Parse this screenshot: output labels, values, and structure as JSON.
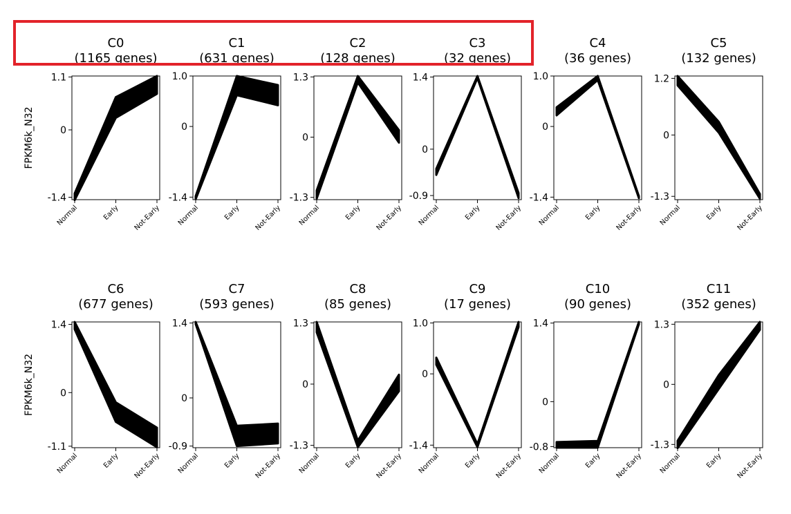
{
  "highlight_color": "#e2232a",
  "line_color": "#000000",
  "ylabel": "FPKM6k_N32",
  "chart_data": [
    {
      "type": "line",
      "title": "C0",
      "subtitle": "(1165 genes)",
      "categories": [
        "Normal",
        "Early",
        "Not-Early"
      ],
      "ylim": [
        -1.45,
        1.12
      ],
      "yticks": [
        1.1,
        0,
        -1.4
      ],
      "ytick_labels": [
        "1.1",
        "0",
        "-1.4"
      ],
      "band": {
        "upper": [
          -1.32,
          0.68,
          1.12
        ],
        "lower": [
          -1.46,
          0.25,
          0.75
        ]
      }
    },
    {
      "type": "line",
      "title": "C1",
      "subtitle": "(631 genes)",
      "categories": [
        "Normal",
        "Early",
        "Not-Early"
      ],
      "ylim": [
        -1.45,
        1.0
      ],
      "yticks": [
        1.0,
        0,
        -1.4
      ],
      "ytick_labels": [
        "1.0",
        "0",
        "-1.4"
      ],
      "band": {
        "upper": [
          -1.38,
          1.0,
          0.82
        ],
        "lower": [
          -1.44,
          0.62,
          0.42
        ]
      }
    },
    {
      "type": "line",
      "title": "C2",
      "subtitle": "(128 genes)",
      "categories": [
        "Normal",
        "Early",
        "Not-Early"
      ],
      "ylim": [
        -1.35,
        1.32
      ],
      "yticks": [
        1.3,
        0,
        -1.3
      ],
      "ytick_labels": [
        "1.3",
        "0",
        "-1.3"
      ],
      "band": {
        "upper": [
          -1.15,
          1.32,
          0.15
        ],
        "lower": [
          -1.33,
          1.18,
          -0.12
        ]
      }
    },
    {
      "type": "line",
      "title": "C3",
      "subtitle": "(32 genes)",
      "categories": [
        "Normal",
        "Early",
        "Not-Early"
      ],
      "ylim": [
        -0.98,
        1.42
      ],
      "yticks": [
        1.4,
        0,
        -0.9
      ],
      "ytick_labels": [
        "1.4",
        "0",
        "-0.9"
      ],
      "band": {
        "upper": [
          -0.38,
          1.42,
          -0.85
        ],
        "lower": [
          -0.5,
          1.38,
          -0.95
        ]
      }
    },
    {
      "type": "line",
      "title": "C4",
      "subtitle": "(36 genes)",
      "categories": [
        "Normal",
        "Early",
        "Not-Early"
      ],
      "ylim": [
        -1.45,
        1.0
      ],
      "yticks": [
        1.0,
        0,
        -1.4
      ],
      "ytick_labels": [
        "1.0",
        "0",
        "-1.4"
      ],
      "band": {
        "upper": [
          0.38,
          1.0,
          -1.38
        ],
        "lower": [
          0.22,
          0.92,
          -1.42
        ]
      }
    },
    {
      "type": "line",
      "title": "C5",
      "subtitle": "(132 genes)",
      "categories": [
        "Normal",
        "Early",
        "Not-Early"
      ],
      "ylim": [
        -1.37,
        1.25
      ],
      "yticks": [
        1.2,
        0,
        -1.3
      ],
      "ytick_labels": [
        "1.2",
        "0",
        "-1.3"
      ],
      "band": {
        "upper": [
          1.25,
          0.28,
          -1.25
        ],
        "lower": [
          1.05,
          0.05,
          -1.35
        ]
      }
    },
    {
      "type": "line",
      "title": "C6",
      "subtitle": "(677 genes)",
      "categories": [
        "Normal",
        "Early",
        "Not-Early"
      ],
      "ylim": [
        -1.13,
        1.45
      ],
      "yticks": [
        1.4,
        0,
        -1.1
      ],
      "ytick_labels": [
        "1.4",
        "0",
        "-1.1"
      ],
      "band": {
        "upper": [
          1.45,
          -0.2,
          -0.72
        ],
        "lower": [
          1.3,
          -0.6,
          -1.12
        ]
      }
    },
    {
      "type": "line",
      "title": "C7",
      "subtitle": "(593 genes)",
      "categories": [
        "Normal",
        "Early",
        "Not-Early"
      ],
      "ylim": [
        -0.93,
        1.42
      ],
      "yticks": [
        1.4,
        0,
        -0.9
      ],
      "ytick_labels": [
        "1.4",
        "0",
        "-0.9"
      ],
      "band": {
        "upper": [
          1.42,
          -0.52,
          -0.48
        ],
        "lower": [
          1.38,
          -0.9,
          -0.85
        ]
      }
    },
    {
      "type": "line",
      "title": "C8",
      "subtitle": "(85 genes)",
      "categories": [
        "Normal",
        "Early",
        "Not-Early"
      ],
      "ylim": [
        -1.35,
        1.32
      ],
      "yticks": [
        1.3,
        0,
        -1.3
      ],
      "ytick_labels": [
        "1.3",
        "0",
        "-1.3"
      ],
      "band": {
        "upper": [
          1.32,
          -1.2,
          0.2
        ],
        "lower": [
          1.1,
          -1.34,
          -0.15
        ]
      }
    },
    {
      "type": "line",
      "title": "C9",
      "subtitle": "(17 genes)",
      "categories": [
        "Normal",
        "Early",
        "Not-Early"
      ],
      "ylim": [
        -1.45,
        1.02
      ],
      "yticks": [
        1.0,
        0,
        -1.4
      ],
      "ytick_labels": [
        "1.0",
        "0",
        "-1.4"
      ],
      "band": {
        "upper": [
          0.32,
          -1.38,
          1.02
        ],
        "lower": [
          0.18,
          -1.44,
          0.92
        ]
      }
    },
    {
      "type": "line",
      "title": "C10",
      "subtitle": "(90 genes)",
      "categories": [
        "Normal",
        "Early",
        "Not-Early"
      ],
      "ylim": [
        -0.82,
        1.42
      ],
      "yticks": [
        1.4,
        0,
        -0.8
      ],
      "ytick_labels": [
        "1.4",
        "0",
        "-0.8"
      ],
      "band": {
        "upper": [
          -0.72,
          -0.7,
          1.42
        ],
        "lower": [
          -0.82,
          -0.82,
          1.38
        ]
      }
    },
    {
      "type": "line",
      "title": "C11",
      "subtitle": "(352 genes)",
      "categories": [
        "Normal",
        "Early",
        "Not-Early"
      ],
      "ylim": [
        -1.37,
        1.35
      ],
      "yticks": [
        1.3,
        0,
        -1.3
      ],
      "ytick_labels": [
        "1.3",
        "0",
        "-1.3"
      ],
      "band": {
        "upper": [
          -1.22,
          0.2,
          1.35
        ],
        "lower": [
          -1.38,
          -0.1,
          1.18
        ]
      }
    }
  ]
}
